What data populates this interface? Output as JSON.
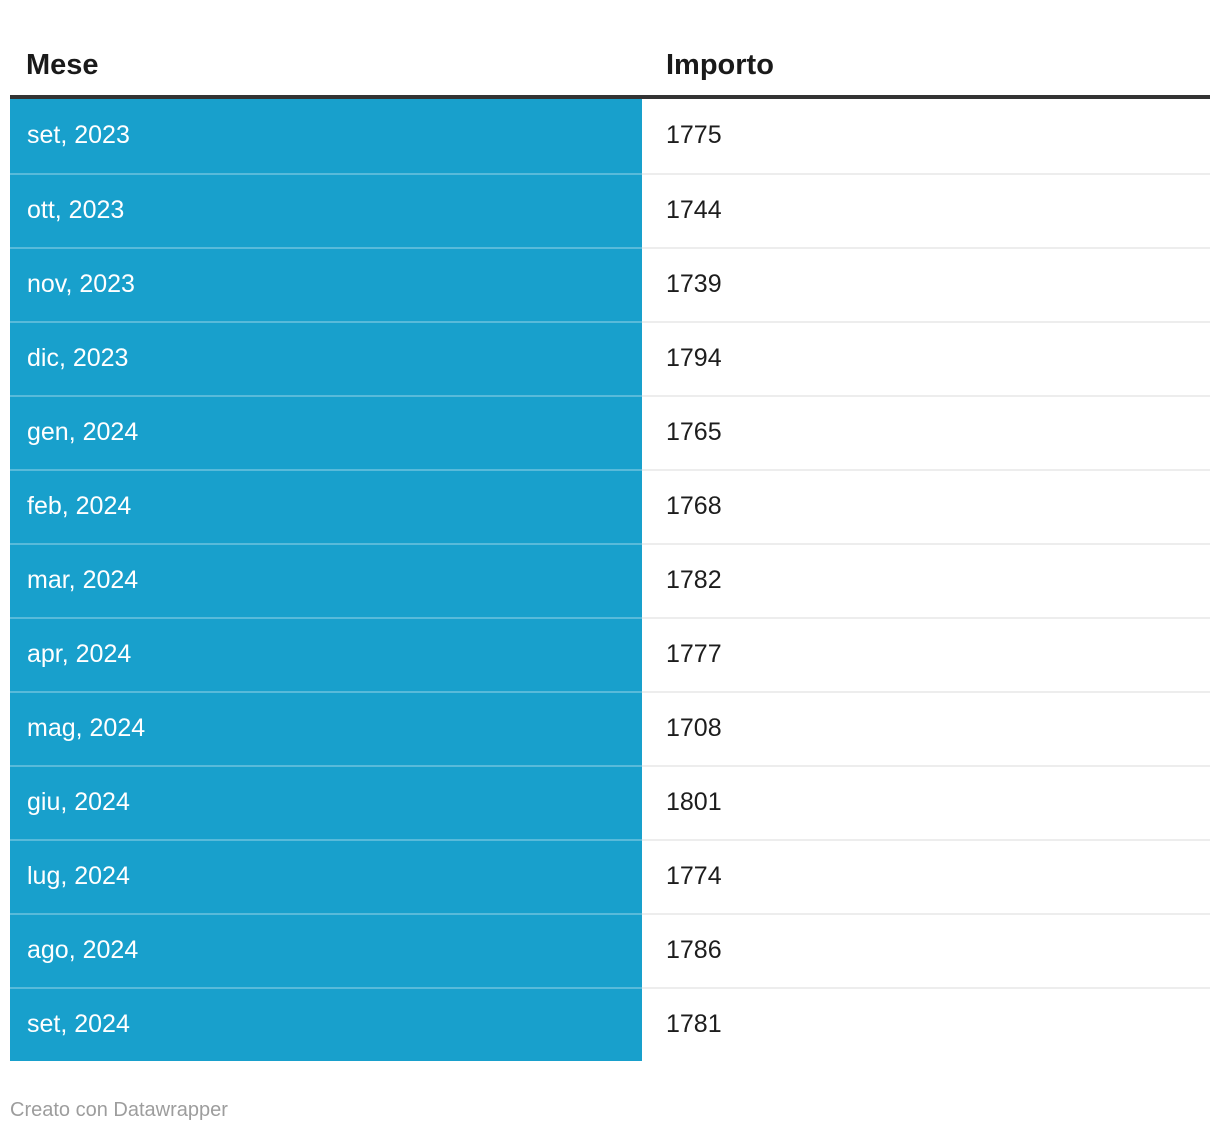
{
  "chart_data": {
    "type": "table",
    "title": "",
    "columns": [
      "Mese",
      "Importo"
    ],
    "rows": [
      {
        "month": "set, 2023",
        "value": 1775
      },
      {
        "month": "ott, 2023",
        "value": 1744
      },
      {
        "month": "nov, 2023",
        "value": 1739
      },
      {
        "month": "dic, 2023",
        "value": 1794
      },
      {
        "month": "gen, 2024",
        "value": 1765
      },
      {
        "month": "feb, 2024",
        "value": 1768
      },
      {
        "month": "mar, 2024",
        "value": 1782
      },
      {
        "month": "apr, 2024",
        "value": 1777
      },
      {
        "month": "mag, 2024",
        "value": 1708
      },
      {
        "month": "giu, 2024",
        "value": 1801
      },
      {
        "month": "lug, 2024",
        "value": 1774
      },
      {
        "month": "ago, 2024",
        "value": 1786
      },
      {
        "month": "set, 2024",
        "value": 1781
      }
    ],
    "categories": [
      "set, 2023",
      "ott, 2023",
      "nov, 2023",
      "dic, 2023",
      "gen, 2024",
      "feb, 2024",
      "mar, 2024",
      "apr, 2024",
      "mag, 2024",
      "giu, 2024",
      "lug, 2024",
      "ago, 2024",
      "set, 2024"
    ],
    "values": [
      1775,
      1744,
      1739,
      1794,
      1765,
      1768,
      1782,
      1777,
      1708,
      1801,
      1774,
      1786,
      1781
    ],
    "layout": {
      "first_column_background": "#18a0cc",
      "header_rule_color": "#333333",
      "row_divider_color": "#ededed"
    }
  },
  "footer": {
    "attribution": "Creato con Datawrapper"
  },
  "colors": {
    "highlight_blue": "#18a0cc",
    "header_text": "#1a1a1a",
    "value_text": "#1d1d1d",
    "month_text": "#ffffff",
    "footer_text": "#9d9d9d"
  }
}
